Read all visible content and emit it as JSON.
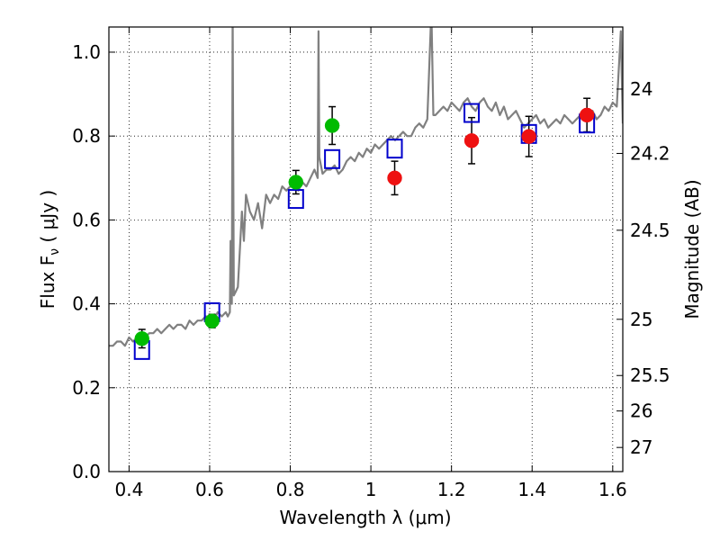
{
  "chart_data": {
    "type": "scatter",
    "xlabel": "Wavelength  λ (μm)",
    "ylabel": "Flux  F",
    "ylabel_sub": "ν",
    "ylabel_unit": "  ( μJy )",
    "ylabel_right": "Magnitude (AB)",
    "xlim": [
      0.35,
      1.625
    ],
    "ylim": [
      0.0,
      1.06
    ],
    "grid": true,
    "x_ticks": [
      {
        "value": 0.4,
        "label": "0.4"
      },
      {
        "value": 0.6,
        "label": "0.6"
      },
      {
        "value": 0.8,
        "label": "0.8"
      },
      {
        "value": 1.0,
        "label": "1"
      },
      {
        "value": 1.2,
        "label": "1.2"
      },
      {
        "value": 1.4,
        "label": "1.4"
      },
      {
        "value": 1.6,
        "label": "1.6"
      }
    ],
    "y_ticks": [
      {
        "value": 0.0,
        "label": "0.0"
      },
      {
        "value": 0.2,
        "label": "0.2"
      },
      {
        "value": 0.4,
        "label": "0.4"
      },
      {
        "value": 0.6,
        "label": "0.6"
      },
      {
        "value": 0.8,
        "label": "0.8"
      },
      {
        "value": 1.0,
        "label": "1.0"
      }
    ],
    "right_ticks": [
      {
        "value": 24.0,
        "label": "24"
      },
      {
        "value": 24.2,
        "label": "24.2"
      },
      {
        "value": 24.5,
        "label": "24.5"
      },
      {
        "value": 25.0,
        "label": "25"
      },
      {
        "value": 25.5,
        "label": "25.5"
      },
      {
        "value": 26.0,
        "label": "26"
      },
      {
        "value": 27.0,
        "label": "27"
      }
    ],
    "colors": {
      "model": "#808080",
      "green": "#00bb00",
      "red": "#ee1111",
      "box": "#0000cc",
      "errorbar": "#000000"
    },
    "model_spectrum": {
      "x": [
        0.35,
        0.36,
        0.37,
        0.38,
        0.39,
        0.4,
        0.41,
        0.42,
        0.43,
        0.44,
        0.45,
        0.46,
        0.47,
        0.48,
        0.49,
        0.5,
        0.51,
        0.52,
        0.53,
        0.54,
        0.55,
        0.56,
        0.57,
        0.58,
        0.59,
        0.6,
        0.61,
        0.62,
        0.63,
        0.64,
        0.645,
        0.65,
        0.652,
        0.655,
        0.657,
        0.66,
        0.665,
        0.67,
        0.68,
        0.685,
        0.69,
        0.7,
        0.71,
        0.72,
        0.73,
        0.74,
        0.75,
        0.76,
        0.77,
        0.78,
        0.79,
        0.8,
        0.81,
        0.82,
        0.83,
        0.84,
        0.85,
        0.86,
        0.868,
        0.87,
        0.872,
        0.88,
        0.89,
        0.9,
        0.91,
        0.92,
        0.93,
        0.94,
        0.95,
        0.96,
        0.97,
        0.98,
        0.99,
        1.0,
        1.01,
        1.02,
        1.03,
        1.04,
        1.05,
        1.06,
        1.07,
        1.08,
        1.09,
        1.1,
        1.11,
        1.12,
        1.13,
        1.14,
        1.15,
        1.155,
        1.16,
        1.17,
        1.18,
        1.19,
        1.2,
        1.21,
        1.22,
        1.23,
        1.24,
        1.25,
        1.26,
        1.27,
        1.28,
        1.29,
        1.3,
        1.31,
        1.32,
        1.33,
        1.34,
        1.35,
        1.36,
        1.37,
        1.38,
        1.39,
        1.4,
        1.41,
        1.42,
        1.43,
        1.44,
        1.45,
        1.46,
        1.47,
        1.48,
        1.49,
        1.5,
        1.51,
        1.52,
        1.53,
        1.54,
        1.55,
        1.56,
        1.57,
        1.58,
        1.59,
        1.6,
        1.61,
        1.62,
        1.625
      ],
      "y": [
        0.3,
        0.3,
        0.31,
        0.31,
        0.3,
        0.32,
        0.31,
        0.32,
        0.31,
        0.32,
        0.33,
        0.33,
        0.34,
        0.33,
        0.34,
        0.35,
        0.34,
        0.35,
        0.35,
        0.34,
        0.36,
        0.35,
        0.36,
        0.36,
        0.37,
        0.37,
        0.36,
        0.38,
        0.37,
        0.38,
        0.37,
        0.38,
        0.55,
        0.4,
        1.1,
        0.42,
        0.43,
        0.44,
        0.62,
        0.55,
        0.66,
        0.62,
        0.6,
        0.64,
        0.58,
        0.66,
        0.64,
        0.66,
        0.65,
        0.68,
        0.67,
        0.68,
        0.68,
        0.67,
        0.69,
        0.68,
        0.7,
        0.72,
        0.7,
        1.05,
        0.75,
        0.71,
        0.72,
        0.72,
        0.73,
        0.71,
        0.72,
        0.74,
        0.75,
        0.74,
        0.76,
        0.75,
        0.77,
        0.76,
        0.78,
        0.77,
        0.78,
        0.79,
        0.8,
        0.79,
        0.8,
        0.81,
        0.8,
        0.8,
        0.82,
        0.83,
        0.82,
        0.84,
        1.1,
        0.85,
        0.85,
        0.86,
        0.87,
        0.86,
        0.88,
        0.87,
        0.86,
        0.88,
        0.89,
        0.87,
        0.86,
        0.88,
        0.89,
        0.87,
        0.86,
        0.88,
        0.85,
        0.87,
        0.84,
        0.85,
        0.86,
        0.84,
        0.82,
        0.83,
        0.84,
        0.85,
        0.83,
        0.84,
        0.82,
        0.83,
        0.84,
        0.83,
        0.85,
        0.84,
        0.83,
        0.84,
        0.85,
        0.86,
        0.85,
        0.86,
        0.84,
        0.85,
        0.87,
        0.86,
        0.88,
        0.87,
        1.05,
        0.83
      ]
    },
    "green_points": [
      {
        "x": 0.432,
        "y": 0.317,
        "err": 0.022
      },
      {
        "x": 0.606,
        "y": 0.359,
        "err": 0.016
      },
      {
        "x": 0.814,
        "y": 0.69,
        "err": 0.028
      },
      {
        "x": 0.904,
        "y": 0.825,
        "err": 0.045
      }
    ],
    "red_points": [
      {
        "x": 1.059,
        "y": 0.7,
        "err": 0.04
      },
      {
        "x": 1.25,
        "y": 0.789,
        "err": 0.055
      },
      {
        "x": 1.392,
        "y": 0.799,
        "err": 0.048
      },
      {
        "x": 1.536,
        "y": 0.85,
        "err": 0.04
      }
    ],
    "model_boxes": [
      {
        "x": 0.432,
        "y": 0.29
      },
      {
        "x": 0.606,
        "y": 0.38
      },
      {
        "x": 0.814,
        "y": 0.65
      },
      {
        "x": 0.904,
        "y": 0.745
      },
      {
        "x": 1.059,
        "y": 0.77
      },
      {
        "x": 1.25,
        "y": 0.855
      },
      {
        "x": 1.392,
        "y": 0.805
      },
      {
        "x": 1.536,
        "y": 0.83
      }
    ]
  }
}
